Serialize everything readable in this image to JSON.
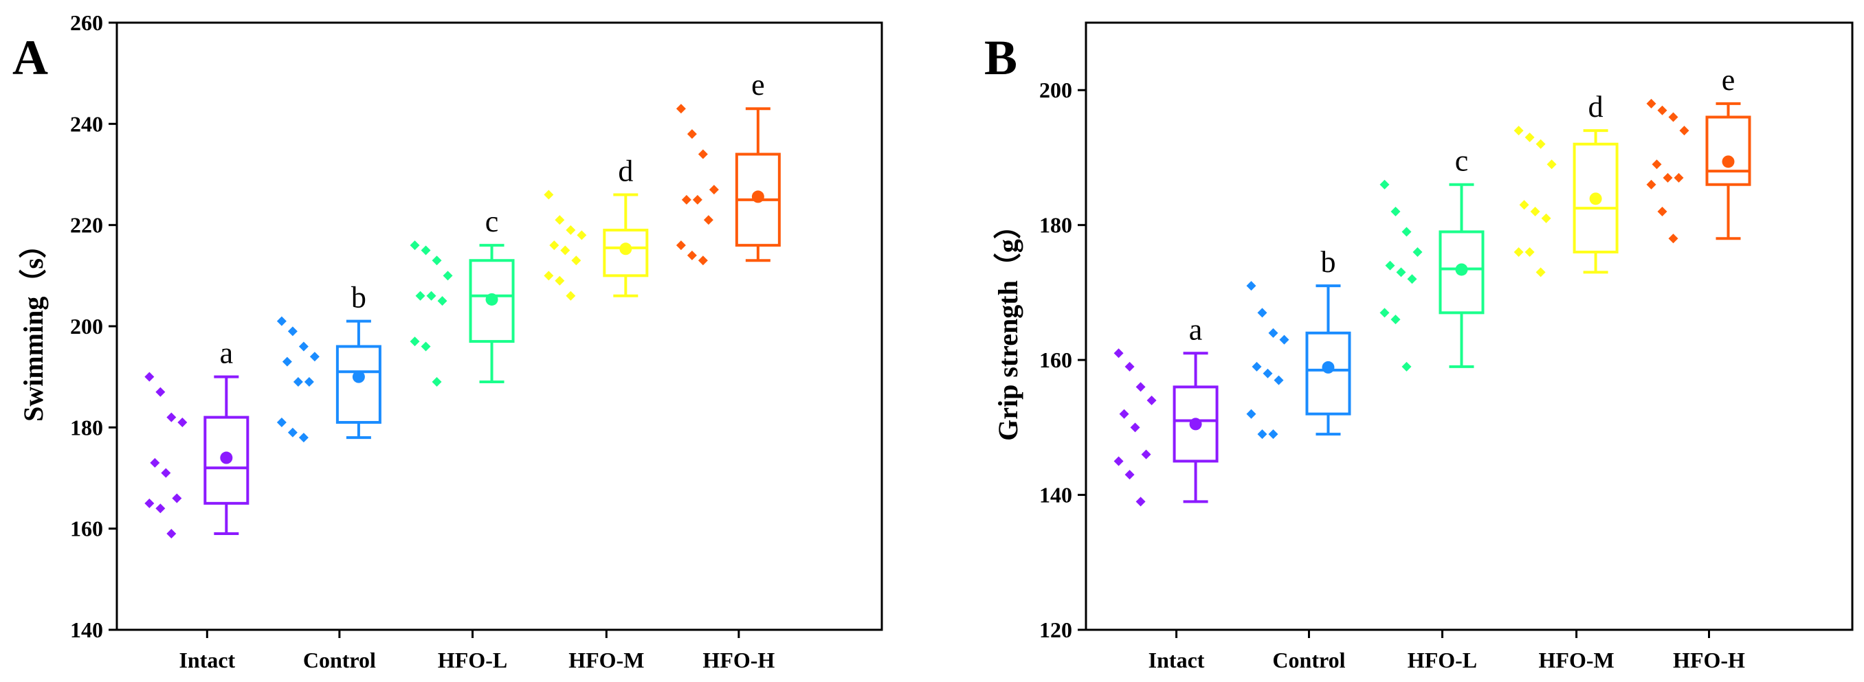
{
  "chart_data": [
    {
      "type": "box",
      "panel": "A",
      "ylabel": "Swimming（s）",
      "ylim": [
        140,
        260
      ],
      "yticks": [
        140,
        160,
        180,
        200,
        220,
        240,
        260
      ],
      "categories": [
        "Intact",
        "Control",
        "HFO-L",
        "HFO-M",
        "HFO-H"
      ],
      "groups": [
        {
          "name": "Intact",
          "color": "#8c1aff",
          "letter": "a",
          "points": [
            190,
            187,
            182,
            181,
            173,
            171,
            166,
            165,
            164,
            159
          ],
          "min": 159,
          "q1": 165,
          "median": 172,
          "q3": 182,
          "max": 190,
          "mean": 174
        },
        {
          "name": "Control",
          "color": "#1a8cff",
          "letter": "b",
          "points": [
            201,
            199,
            196,
            194,
            193,
            189,
            189,
            181,
            179,
            178
          ],
          "min": 178,
          "q1": 181,
          "median": 191,
          "q3": 196,
          "max": 201,
          "mean": 190
        },
        {
          "name": "HFO-L",
          "color": "#1aff8c",
          "letter": "c",
          "points": [
            216,
            215,
            213,
            210,
            206,
            206,
            205,
            197,
            196,
            189
          ],
          "min": 189,
          "q1": 197,
          "median": 206,
          "q3": 213,
          "max": 216,
          "mean": 205.3
        },
        {
          "name": "HFO-M",
          "color": "#ffff1a",
          "letter": "d",
          "points": [
            226,
            221,
            219,
            218,
            216,
            215,
            213,
            210,
            209,
            206
          ],
          "min": 206,
          "q1": 210,
          "median": 215.5,
          "q3": 219,
          "max": 226,
          "mean": 215.3
        },
        {
          "name": "HFO-H",
          "color": "#ff5a0a",
          "letter": "e",
          "points": [
            243,
            238,
            234,
            227,
            225,
            225,
            221,
            216,
            214,
            213
          ],
          "min": 213,
          "q1": 216,
          "median": 225,
          "q3": 234,
          "max": 243,
          "mean": 225.6
        }
      ]
    },
    {
      "type": "box",
      "panel": "B",
      "ylabel": "Grip strength（g）",
      "ylim": [
        120,
        210
      ],
      "yticks": [
        120,
        140,
        160,
        180,
        200
      ],
      "categories": [
        "Intact",
        "Control",
        "HFO-L",
        "HFO-M",
        "HFO-H"
      ],
      "groups": [
        {
          "name": "Intact",
          "color": "#8c1aff",
          "letter": "a",
          "points": [
            161,
            159,
            156,
            154,
            152,
            150,
            146,
            145,
            143,
            139
          ],
          "min": 139,
          "q1": 145,
          "median": 151,
          "q3": 156,
          "max": 161,
          "mean": 150.5
        },
        {
          "name": "Control",
          "color": "#1a8cff",
          "letter": "b",
          "points": [
            171,
            167,
            164,
            163,
            159,
            158,
            157,
            152,
            149,
            149
          ],
          "min": 149,
          "q1": 152,
          "median": 158.5,
          "q3": 164,
          "max": 171,
          "mean": 158.9
        },
        {
          "name": "HFO-L",
          "color": "#1aff8c",
          "letter": "c",
          "points": [
            186,
            182,
            179,
            176,
            174,
            173,
            172,
            167,
            166,
            159
          ],
          "min": 159,
          "q1": 167,
          "median": 173.5,
          "q3": 179,
          "max": 186,
          "mean": 173.4
        },
        {
          "name": "HFO-M",
          "color": "#ffff1a",
          "letter": "d",
          "points": [
            194,
            193,
            192,
            189,
            183,
            182,
            181,
            176,
            176,
            173
          ],
          "min": 173,
          "q1": 176,
          "median": 182.5,
          "q3": 192,
          "max": 194,
          "mean": 183.9
        },
        {
          "name": "HFO-H",
          "color": "#ff5a0a",
          "letter": "e",
          "points": [
            198,
            197,
            196,
            194,
            189,
            187,
            187,
            186,
            182,
            178
          ],
          "min": 178,
          "q1": 186,
          "median": 188,
          "q3": 196,
          "max": 198,
          "mean": 189.4
        }
      ]
    }
  ]
}
